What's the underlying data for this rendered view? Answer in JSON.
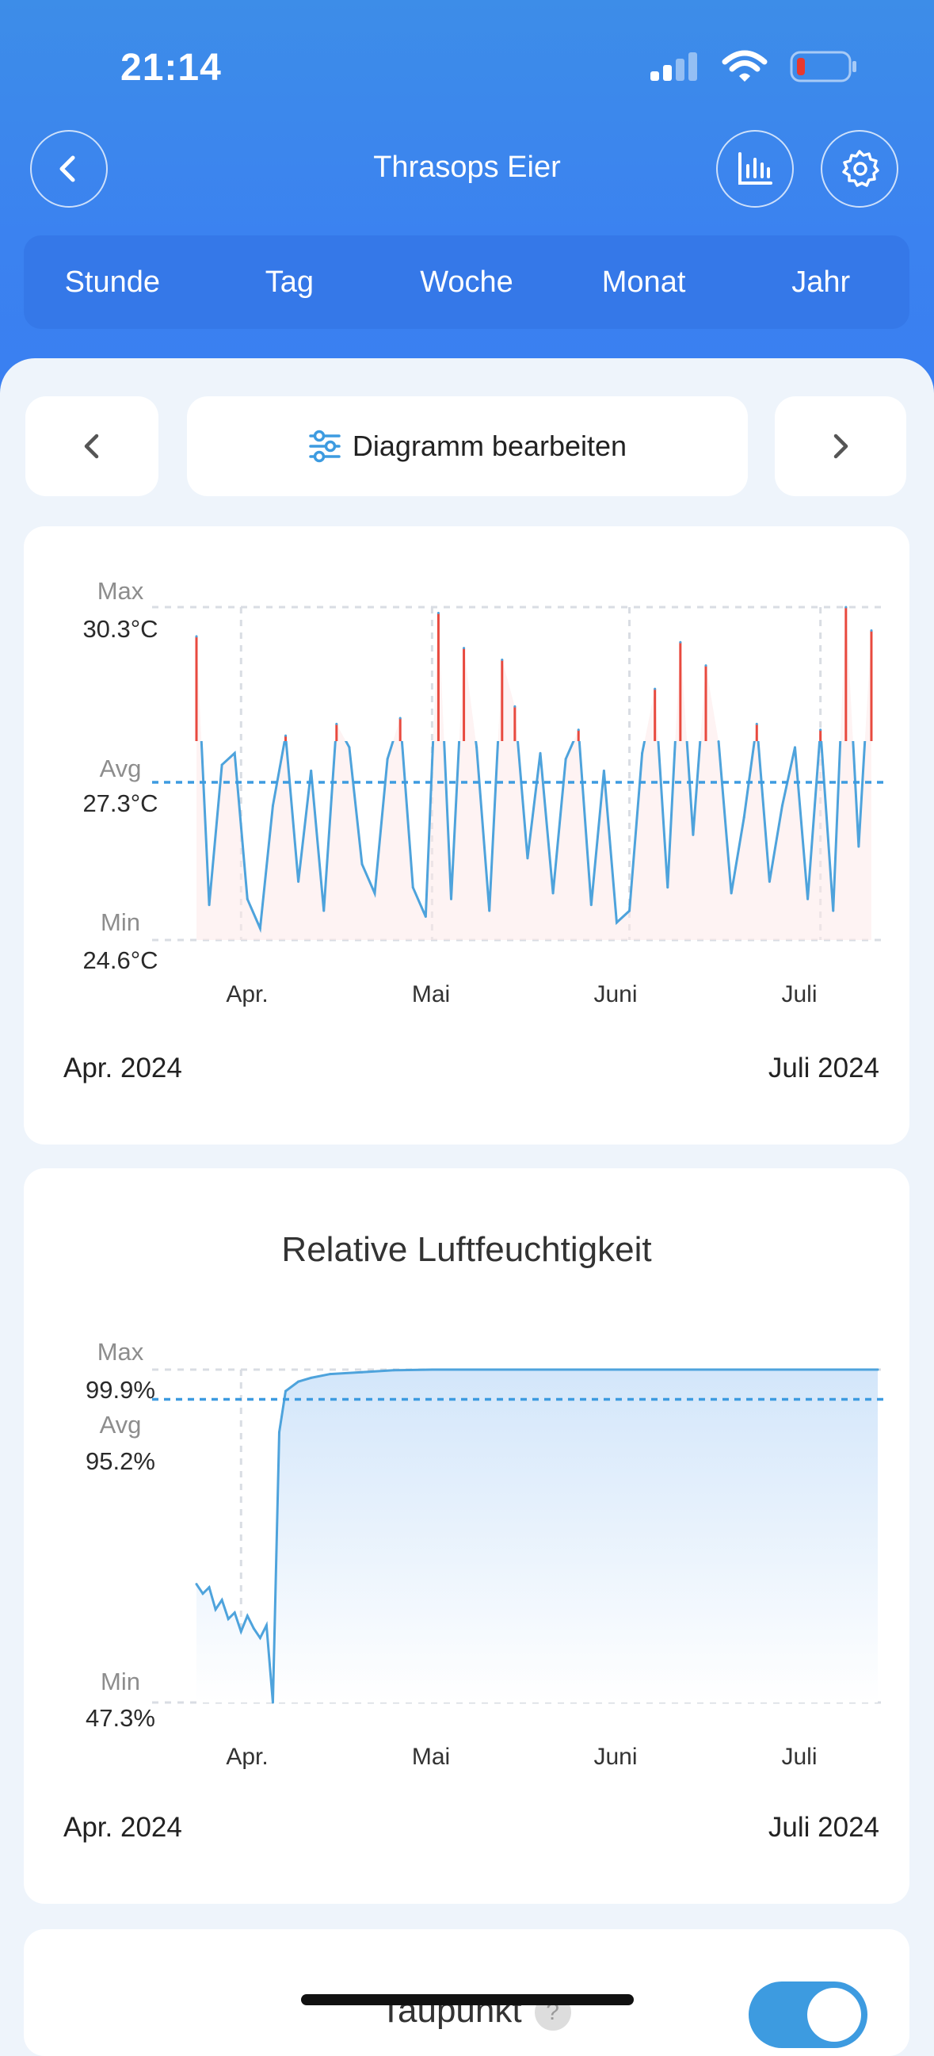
{
  "status": {
    "time": "21:14"
  },
  "header": {
    "title": "Thrasops Eier"
  },
  "periods": [
    "Stunde",
    "Tag",
    "Woche",
    "Monat",
    "Jahr"
  ],
  "controls": {
    "edit_label": "Diagramm bearbeiten"
  },
  "temperature": {
    "max_key": "Max",
    "max_val": "30.3°C",
    "avg_key": "Avg",
    "avg_val": "27.3°C",
    "min_key": "Min",
    "min_val": "24.6°C",
    "months": [
      "Apr.",
      "Mai",
      "Juni",
      "Juli"
    ],
    "range_start": "Apr. 2024",
    "range_end": "Juli 2024"
  },
  "humidity": {
    "title": "Relative Luftfeuchtigkeit",
    "max_key": "Max",
    "max_val": "99.9%",
    "avg_key": "Avg",
    "avg_val": "95.2%",
    "min_key": "Min",
    "min_val": "47.3%",
    "months": [
      "Apr.",
      "Mai",
      "Juni",
      "Juli"
    ],
    "range_start": "Apr. 2024",
    "range_end": "Juli 2024"
  },
  "dewpoint": {
    "label": "Taupunkt",
    "help": "?"
  },
  "colors": {
    "accent": "#3a7ff1",
    "line": "#4ea3dc",
    "high": "#e84a3f"
  },
  "chart_data": [
    {
      "type": "line",
      "ylim": [
        24.6,
        30.3
      ],
      "avg": 27.3,
      "xlim": [
        "2024-03-25",
        "2024-07-10"
      ],
      "x_ticks": [
        "2024-04-01",
        "2024-05-01",
        "2024-06-01",
        "2024-07-01"
      ],
      "series": [
        {
          "x": [
            "2024-03-25",
            "2024-03-27",
            "2024-03-29",
            "2024-03-31",
            "2024-04-02",
            "2024-04-04",
            "2024-04-06",
            "2024-04-08",
            "2024-04-10",
            "2024-04-12",
            "2024-04-14",
            "2024-04-16",
            "2024-04-18",
            "2024-04-20",
            "2024-04-22",
            "2024-04-24",
            "2024-04-26",
            "2024-04-28",
            "2024-04-30",
            "2024-05-02",
            "2024-05-04",
            "2024-05-06",
            "2024-05-08",
            "2024-05-10",
            "2024-05-12",
            "2024-05-14",
            "2024-05-16",
            "2024-05-18",
            "2024-05-20",
            "2024-05-22",
            "2024-05-24",
            "2024-05-26",
            "2024-05-28",
            "2024-05-30",
            "2024-06-01",
            "2024-06-03",
            "2024-06-05",
            "2024-06-07",
            "2024-06-09",
            "2024-06-11",
            "2024-06-13",
            "2024-06-15",
            "2024-06-17",
            "2024-06-19",
            "2024-06-21",
            "2024-06-23",
            "2024-06-25",
            "2024-06-27",
            "2024-06-29",
            "2024-07-01",
            "2024-07-03",
            "2024-07-05",
            "2024-07-07",
            "2024-07-09"
          ],
          "y": [
            29.8,
            25.2,
            27.6,
            27.8,
            25.3,
            24.8,
            26.9,
            28.1,
            25.6,
            27.5,
            25.1,
            28.3,
            27.9,
            25.9,
            25.4,
            27.7,
            28.4,
            25.5,
            25.0,
            30.2,
            25.3,
            29.6,
            27.9,
            25.1,
            29.4,
            28.6,
            26.0,
            27.8,
            25.4,
            27.7,
            28.2,
            25.2,
            27.5,
            24.9,
            25.1,
            27.8,
            28.9,
            25.5,
            29.7,
            26.4,
            29.3,
            28.0,
            25.4,
            26.7,
            28.3,
            25.6,
            26.9,
            27.9,
            25.3,
            28.2,
            25.1,
            30.3,
            26.2,
            29.9
          ]
        }
      ]
    },
    {
      "type": "area",
      "ylim": [
        47.3,
        99.9
      ],
      "avg": 95.2,
      "xlim": [
        "2024-03-25",
        "2024-07-10"
      ],
      "x_ticks": [
        "2024-04-01",
        "2024-05-01",
        "2024-06-01",
        "2024-07-01"
      ],
      "series": [
        {
          "x": [
            "2024-03-25",
            "2024-03-26",
            "2024-03-27",
            "2024-03-28",
            "2024-03-29",
            "2024-03-30",
            "2024-03-31",
            "2024-04-01",
            "2024-04-02",
            "2024-04-03",
            "2024-04-04",
            "2024-04-05",
            "2024-04-06",
            "2024-04-07",
            "2024-04-08",
            "2024-04-10",
            "2024-04-12",
            "2024-04-15",
            "2024-04-20",
            "2024-04-25",
            "2024-05-01",
            "2024-05-15",
            "2024-06-01",
            "2024-06-15",
            "2024-07-01",
            "2024-07-10"
          ],
          "y": [
            66.0,
            64.5,
            65.5,
            62.0,
            63.5,
            60.5,
            61.5,
            58.5,
            61.0,
            59.0,
            57.5,
            59.5,
            47.3,
            90.0,
            96.5,
            98.0,
            98.6,
            99.2,
            99.5,
            99.8,
            99.9,
            99.9,
            99.9,
            99.9,
            99.9,
            99.9
          ]
        }
      ]
    }
  ]
}
